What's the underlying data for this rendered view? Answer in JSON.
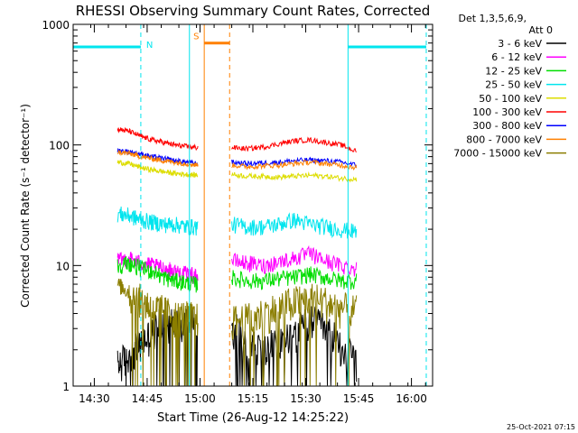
{
  "chart_data": {
    "type": "line",
    "title": "RHESSI Observing Summary Count Rates, Corrected",
    "xlabel": "Start Time (26-Aug-12 14:25:22)",
    "ylabel": "Corrected Count Rate (s⁻¹ detector⁻¹)",
    "yscale": "log",
    "ylim": [
      1,
      1000
    ],
    "xlim_minutes": [
      14.4,
      16.1
    ],
    "x_ticks": [
      "14:30",
      "14:45",
      "15:00",
      "15:15",
      "15:30",
      "15:45",
      "16:00"
    ],
    "y_ticks": [
      "1",
      "10",
      "100",
      "1000"
    ],
    "legend_header": [
      "Det 1,3,5,6,9,",
      "Att 0"
    ],
    "legend_placement": "right",
    "timestamp": "25-Oct-2021 07:15",
    "x_tick_hours": [
      14.5,
      14.75,
      15.0,
      15.25,
      15.5,
      15.75,
      16.0
    ],
    "segments": [
      [
        14.61,
        14.99
      ],
      [
        15.15,
        15.74
      ]
    ],
    "series": [
      {
        "name": "3 - 6 keV",
        "color": "#000000",
        "segA": [
          1.5,
          1.8,
          2.2,
          2.8,
          3.5,
          3.2,
          3.6,
          3.4
        ],
        "segB": [
          3.2,
          2.4,
          2.0,
          2.3,
          2.8,
          3.5,
          3.0,
          2.2,
          1.6
        ]
      },
      {
        "name": "6 - 12 keV",
        "color": "#ff00ff",
        "segA": [
          11,
          11.5,
          10.5,
          10,
          9.5,
          9.0,
          8.5,
          8.2
        ],
        "segB": [
          11,
          10.5,
          10,
          10.8,
          11.5,
          12.5,
          11,
          10,
          9.5
        ]
      },
      {
        "name": "12 - 25 keV",
        "color": "#00dd00",
        "segA": [
          10,
          10.5,
          9.5,
          9.0,
          8.0,
          7.5,
          7.2,
          7.0
        ],
        "segB": [
          8.0,
          7.5,
          7.5,
          7.8,
          8.0,
          8.5,
          8.0,
          7.5,
          7.5
        ]
      },
      {
        "name": "25 - 50 keV",
        "color": "#00e5ee",
        "segA": [
          27,
          26,
          24,
          23,
          22,
          22,
          21,
          21
        ],
        "segB": [
          22,
          21,
          21,
          22,
          24,
          22,
          21,
          20,
          19
        ]
      },
      {
        "name": "50 - 100 keV",
        "color": "#dddd00",
        "segA": [
          72,
          70,
          65,
          62,
          60,
          58,
          57,
          56
        ],
        "segB": [
          57,
          55,
          55,
          54,
          55,
          56,
          55,
          53,
          52
        ]
      },
      {
        "name": "100 - 300 keV",
        "color": "#ff0000",
        "segA": [
          135,
          130,
          118,
          110,
          105,
          100,
          97,
          95
        ],
        "segB": [
          95,
          93,
          96,
          102,
          108,
          110,
          105,
          100,
          88
        ]
      },
      {
        "name": "300 - 800 keV",
        "color": "#0000ff",
        "segA": [
          90,
          88,
          84,
          80,
          77,
          74,
          72,
          70
        ],
        "segB": [
          72,
          70,
          71,
          72,
          74,
          75,
          74,
          72,
          68
        ]
      },
      {
        "name": "800 - 7000 keV",
        "color": "#ff8000",
        "segA": [
          87,
          85,
          80,
          77,
          74,
          72,
          70,
          68
        ],
        "segB": [
          68,
          66,
          67,
          68,
          70,
          72,
          70,
          68,
          65
        ]
      },
      {
        "name": "7000 - 15000 keV",
        "color": "#8b7e00",
        "segA": [
          7.0,
          6.0,
          5.2,
          4.5,
          4.2,
          3.8,
          3.8,
          3.6
        ],
        "segB": [
          3.5,
          3.6,
          4.0,
          4.5,
          5.0,
          5.5,
          5.0,
          4.5,
          4.2
        ]
      }
    ],
    "annotations": [
      {
        "label": "N",
        "color": "#00e5ee",
        "bars": [
          [
            14.4,
            14.72
          ],
          [
            15.7,
            16.07
          ]
        ],
        "bar_value": 650,
        "vlines_hours": [
          14.72,
          14.95,
          15.7,
          16.07
        ],
        "vline_styles": [
          "dashed",
          "solid",
          "solid",
          "dashed"
        ]
      },
      {
        "label": "S",
        "color": "#ff8000",
        "bars": [
          [
            15.02,
            15.14
          ]
        ],
        "bar_value": 700,
        "vlines_hours": [
          15.02,
          15.14
        ],
        "vline_styles": [
          "solid",
          "dashed"
        ]
      }
    ]
  }
}
